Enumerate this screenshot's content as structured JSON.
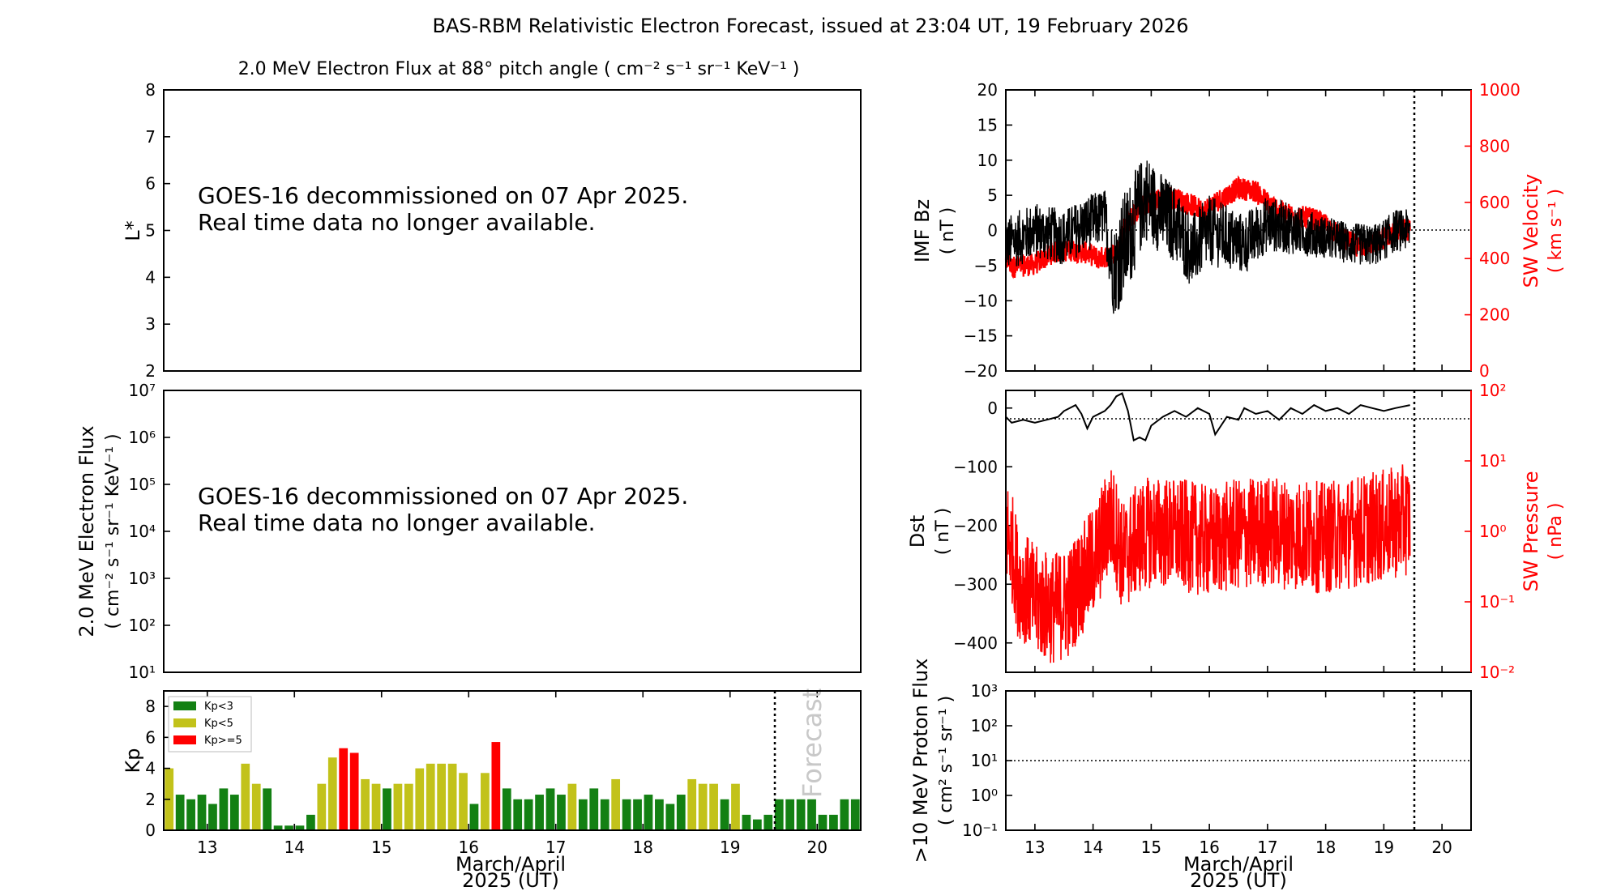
{
  "title": "BAS-RBM Relativistic Electron Forecast, issued at 23:04 UT, 19 February 2026",
  "colors": {
    "kp_low": "#138013",
    "kp_mid": "#c2c21a",
    "kp_high": "#ff0000",
    "sw": "#ff0000",
    "line": "#000000",
    "forecast_text": "#c8c8c8"
  },
  "chart_data": [
    {
      "id": "lstar",
      "type": "line",
      "title": "2.0 MeV Electron Flux at 88° pitch angle ( cm⁻² s⁻¹ sr⁻¹ KeV⁻¹ )",
      "ylabel": "L*",
      "ylim": [
        2,
        8
      ],
      "yticks": [
        "2",
        "3",
        "4",
        "5",
        "6",
        "7",
        "8"
      ],
      "message_line1": "GOES-16 decommissioned on 07 Apr 2025.",
      "message_line2": "Real time data no longer available."
    },
    {
      "id": "eflux",
      "type": "line",
      "ylabel_line1": "2.0 MeV Electron Flux",
      "ylabel_line2": "( cm⁻² s⁻¹ sr⁻¹ KeV⁻¹ )",
      "yscale": "log",
      "ylim": [
        10,
        10000000
      ],
      "yticks": [
        "10¹",
        "10²",
        "10³",
        "10⁴",
        "10⁵",
        "10⁶",
        "10⁷"
      ],
      "message_line1": "GOES-16 decommissioned on 07 Apr 2025.",
      "message_line2": "Real time data no longer available."
    },
    {
      "id": "kp",
      "type": "bar",
      "ylabel": "Kp",
      "ylim": [
        0,
        9
      ],
      "yticks": [
        "0",
        "2",
        "4",
        "6",
        "8"
      ],
      "xlim": [
        12.5,
        20.5
      ],
      "xticks": [
        "13",
        "14",
        "15",
        "16",
        "17",
        "18",
        "19",
        "20"
      ],
      "xlabel_line1": "March/April",
      "xlabel_line2": "2025 (UT)",
      "forecast_start": 19.5,
      "forecast_label": "Forecast",
      "legend": {
        "position": "top-left",
        "entries": [
          "Kp<3",
          "Kp<5",
          "Kp>=5"
        ]
      },
      "values": [
        4.0,
        2.3,
        2.0,
        2.3,
        1.7,
        2.7,
        2.3,
        4.3,
        3.0,
        2.7,
        0.3,
        0.3,
        0.3,
        1.0,
        3.0,
        4.7,
        5.3,
        5.0,
        3.3,
        3.0,
        2.7,
        3.0,
        3.0,
        4.0,
        4.3,
        4.3,
        4.3,
        3.7,
        1.7,
        3.7,
        5.7,
        2.7,
        2.0,
        2.0,
        2.3,
        2.7,
        2.3,
        3.0,
        2.0,
        2.7,
        2.0,
        3.3,
        2.0,
        2.0,
        2.3,
        2.0,
        1.7,
        2.3,
        3.3,
        3.0,
        3.0,
        2.0,
        3.0,
        1.0,
        0.7,
        1.0,
        2.0,
        2.0,
        2.0,
        2.0,
        1.0,
        1.0,
        2.0,
        2.0
      ]
    },
    {
      "id": "imf",
      "type": "line",
      "ylabel_line1": "IMF Bz",
      "ylabel_line2": "( nT )",
      "ylim": [
        -20,
        20
      ],
      "yticks": [
        "−20",
        "−15",
        "−10",
        "−5",
        "0",
        "5",
        "10",
        "15",
        "20"
      ],
      "y2label_line1": "SW Velocity",
      "y2label_line2": "( km s⁻¹ )",
      "y2lim": [
        0,
        1000
      ],
      "y2ticks": [
        "0",
        "200",
        "400",
        "600",
        "800",
        "1000"
      ],
      "xlim": [
        12.5,
        20.5
      ],
      "now": 19.47,
      "series": [
        {
          "axis": "left",
          "data_end": 19.45,
          "baseline": [
            [
              12.5,
              -2
            ],
            [
              13.0,
              0
            ],
            [
              13.5,
              -1
            ],
            [
              13.9,
              1
            ],
            [
              14.2,
              2
            ],
            [
              14.35,
              -6
            ],
            [
              14.6,
              -1
            ],
            [
              14.9,
              5
            ],
            [
              15.1,
              3
            ],
            [
              15.4,
              1
            ],
            [
              15.7,
              -3
            ],
            [
              16.0,
              0
            ],
            [
              16.3,
              -1
            ],
            [
              16.6,
              -2
            ],
            [
              17.0,
              1
            ],
            [
              17.5,
              0
            ],
            [
              18.0,
              -1
            ],
            [
              18.5,
              -2
            ],
            [
              18.9,
              -2
            ],
            [
              19.2,
              0
            ],
            [
              19.45,
              0
            ]
          ],
          "noise_amplitude": [
            [
              12.5,
              4
            ],
            [
              14.2,
              4
            ],
            [
              14.5,
              8
            ],
            [
              15.0,
              6
            ],
            [
              16.0,
              5
            ],
            [
              17.0,
              4
            ],
            [
              18.0,
              3
            ],
            [
              19.45,
              3
            ]
          ]
        },
        {
          "axis": "right",
          "data_end": 19.45,
          "baseline": [
            [
              12.5,
              410
            ],
            [
              12.6,
              370
            ],
            [
              13.0,
              380
            ],
            [
              13.3,
              420
            ],
            [
              13.6,
              430
            ],
            [
              13.9,
              420
            ],
            [
              14.1,
              400
            ],
            [
              14.4,
              420
            ],
            [
              14.55,
              520
            ],
            [
              14.8,
              580
            ],
            [
              15.0,
              600
            ],
            [
              15.3,
              620
            ],
            [
              15.6,
              600
            ],
            [
              15.9,
              570
            ],
            [
              16.1,
              600
            ],
            [
              16.5,
              650
            ],
            [
              16.8,
              640
            ],
            [
              17.0,
              600
            ],
            [
              17.3,
              560
            ],
            [
              17.8,
              540
            ],
            [
              18.0,
              520
            ],
            [
              18.3,
              470
            ],
            [
              18.6,
              440
            ],
            [
              18.9,
              460
            ],
            [
              19.2,
              500
            ],
            [
              19.45,
              500
            ]
          ],
          "noise_amplitude": 40
        }
      ]
    },
    {
      "id": "dst",
      "type": "line",
      "ylabel_line1": "Dst",
      "ylabel_line2": "( nT )",
      "ylim": [
        -450,
        30
      ],
      "yticks": [
        "−400",
        "−300",
        "−200",
        "−100",
        "0"
      ],
      "y2label_line1": "SW Pressure",
      "y2label_line2": "( nPa )",
      "y2scale": "log",
      "y2lim": [
        0.01,
        100
      ],
      "y2ticks": [
        "10⁻²",
        "10⁻¹",
        "10⁰",
        "10¹",
        "10²"
      ],
      "xlim": [
        12.5,
        20.5
      ],
      "now": 19.47,
      "series": [
        {
          "axis": "left",
          "data_end": 19.45,
          "points": [
            [
              12.5,
              -15
            ],
            [
              12.6,
              -25
            ],
            [
              12.8,
              -20
            ],
            [
              13.0,
              -25
            ],
            [
              13.2,
              -20
            ],
            [
              13.4,
              -15
            ],
            [
              13.5,
              -5
            ],
            [
              13.7,
              5
            ],
            [
              13.8,
              -10
            ],
            [
              13.9,
              -35
            ],
            [
              14.0,
              -15
            ],
            [
              14.2,
              -5
            ],
            [
              14.3,
              5
            ],
            [
              14.4,
              20
            ],
            [
              14.5,
              25
            ],
            [
              14.6,
              -5
            ],
            [
              14.7,
              -55
            ],
            [
              14.8,
              -50
            ],
            [
              14.9,
              -55
            ],
            [
              15.0,
              -30
            ],
            [
              15.2,
              -15
            ],
            [
              15.4,
              -5
            ],
            [
              15.6,
              -15
            ],
            [
              15.8,
              0
            ],
            [
              16.0,
              -10
            ],
            [
              16.1,
              -45
            ],
            [
              16.3,
              -15
            ],
            [
              16.5,
              -20
            ],
            [
              16.6,
              0
            ],
            [
              16.8,
              -10
            ],
            [
              17.0,
              -5
            ],
            [
              17.2,
              -20
            ],
            [
              17.4,
              0
            ],
            [
              17.6,
              -10
            ],
            [
              17.8,
              5
            ],
            [
              18.0,
              -5
            ],
            [
              18.2,
              0
            ],
            [
              18.4,
              -10
            ],
            [
              18.6,
              5
            ],
            [
              18.8,
              0
            ],
            [
              19.0,
              -5
            ],
            [
              19.2,
              0
            ],
            [
              19.45,
              5
            ]
          ]
        },
        {
          "axis": "right",
          "data_end": 19.45,
          "baseline": [
            [
              12.5,
              1.0
            ],
            [
              12.7,
              0.2
            ],
            [
              13.0,
              0.1
            ],
            [
              13.3,
              0.08
            ],
            [
              13.6,
              0.1
            ],
            [
              13.9,
              0.25
            ],
            [
              14.1,
              0.5
            ],
            [
              14.3,
              1.5
            ],
            [
              14.5,
              0.4
            ],
            [
              14.8,
              0.8
            ],
            [
              15.0,
              1.0
            ],
            [
              15.5,
              0.9
            ],
            [
              16.0,
              0.7
            ],
            [
              16.5,
              0.9
            ],
            [
              17.0,
              1.0
            ],
            [
              17.5,
              0.9
            ],
            [
              18.0,
              0.8
            ],
            [
              18.5,
              1.0
            ],
            [
              19.0,
              1.2
            ],
            [
              19.45,
              1.5
            ]
          ],
          "noise_decades": 0.8
        }
      ]
    },
    {
      "id": "proton",
      "type": "line",
      "ylabel_line1": ">10 MeV Proton Flux",
      "ylabel_line2": "( cm² s⁻¹ sr⁻¹ )",
      "yscale": "log",
      "ylim": [
        0.1,
        1000
      ],
      "yticks": [
        "10⁻¹",
        "10⁰",
        "10¹",
        "10²",
        "10³"
      ],
      "xlim": [
        12.5,
        20.5
      ],
      "xticks": [
        "13",
        "14",
        "15",
        "16",
        "17",
        "18",
        "19",
        "20"
      ],
      "xlabel_line1": "March/April",
      "xlabel_line2": "2025 (UT)",
      "threshold": 10,
      "now": 19.47
    }
  ]
}
